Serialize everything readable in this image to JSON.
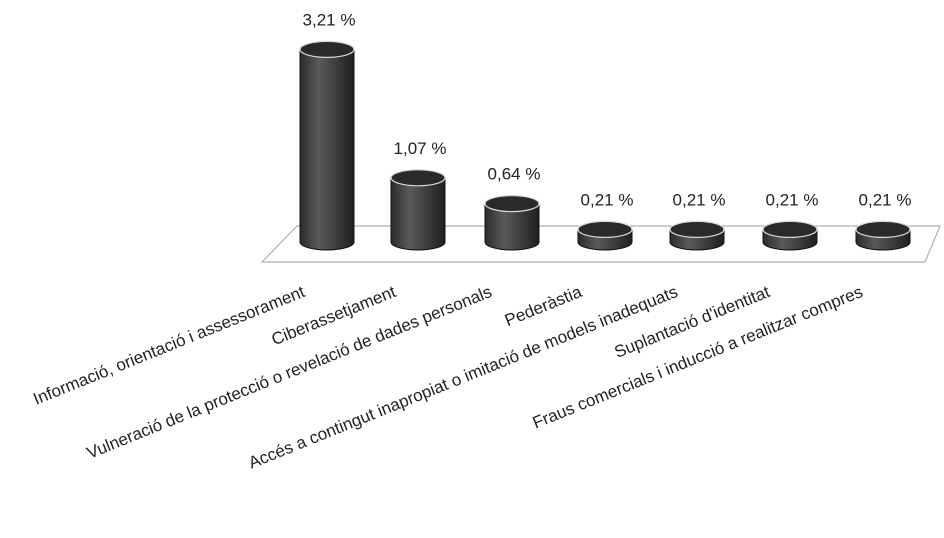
{
  "chart_data": {
    "type": "bar",
    "style": "3d-cylinder",
    "categories": [
      "Informació, orientació i assessorament",
      "Ciberassetjament",
      "Vulneració de la protecció o revelació de dades personals",
      "Pederàstia",
      "Accés a contingut inapropiat o imitació de models inadequats",
      "Suplantació d'identitat",
      "Fraus comercials i inducció a realitzar compres"
    ],
    "values": [
      3.21,
      1.07,
      0.64,
      0.21,
      0.21,
      0.21,
      0.21
    ],
    "data_labels": [
      "3,21 %",
      "1,07 %",
      "0,64 %",
      "0,21 %",
      "0,21 %",
      "0,21 %",
      "0,21 %"
    ],
    "title": "",
    "xlabel": "",
    "ylabel": "",
    "grid": false,
    "legend": "none",
    "colors": {
      "bar": "#3a3a3a",
      "bar_top": "#2a2a2a",
      "floor": "#ffffff",
      "floor_edge": "#b0b0b0"
    }
  }
}
